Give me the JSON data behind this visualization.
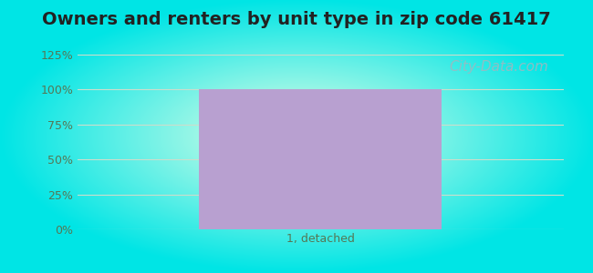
{
  "title": "Owners and renters by unit type in zip code 61417",
  "categories": [
    "1, detached"
  ],
  "values": [
    100
  ],
  "bar_color": "#b8a0d0",
  "bar_width": 0.5,
  "ylim": [
    0,
    125
  ],
  "yticks": [
    0,
    25,
    50,
    75,
    100,
    125
  ],
  "ytick_labels": [
    "0%",
    "25%",
    "50%",
    "75%",
    "100%",
    "125%"
  ],
  "title_fontsize": 14,
  "tick_fontsize": 9,
  "bg_cyan": [
    0,
    229,
    229
  ],
  "bg_green_white": [
    232,
    255,
    232
  ],
  "watermark": "City-Data.com",
  "watermark_color": "#a0b8c0",
  "watermark_fontsize": 11,
  "grid_color": "#ccddcc",
  "tick_color": "#557755",
  "title_color": "#222222"
}
